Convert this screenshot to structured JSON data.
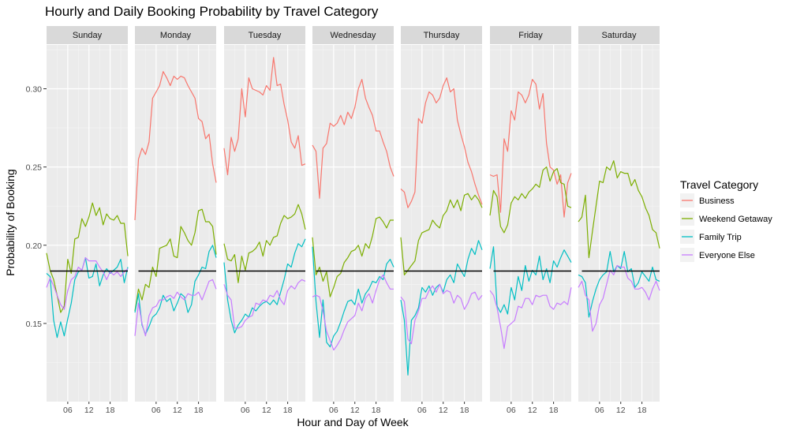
{
  "chart_data": {
    "type": "line",
    "title": "Hourly and Daily Booking Probability by Travel Category",
    "xlabel": "Hour and Day of Week",
    "ylabel": "Probability of Booking",
    "facets": [
      "Sunday",
      "Monday",
      "Tuesday",
      "Wednesday",
      "Thursday",
      "Friday",
      "Saturday"
    ],
    "x_ticks": [
      6,
      12,
      18
    ],
    "x_tick_labels": [
      "06",
      "12",
      "18"
    ],
    "xlim": [
      0,
      23
    ],
    "ylim": [
      0.1,
      0.328
    ],
    "y_ticks": [
      0.15,
      0.2,
      0.25,
      0.3
    ],
    "y_tick_labels": [
      "0.15",
      "0.20",
      "0.25",
      "0.30"
    ],
    "reference_line": 0.1835,
    "grid": true,
    "legend": {
      "title": "Travel Category",
      "placement": "right"
    },
    "series": [
      {
        "name": "Business",
        "color": "#F8766D",
        "values": [
          [],
          [
            0.216,
            0.255,
            0.262,
            0.258,
            0.266,
            0.294,
            0.298,
            0.302,
            0.311,
            0.307,
            0.302,
            0.308,
            0.306,
            0.308,
            0.307,
            0.302,
            0.298,
            0.294,
            0.281,
            0.279,
            0.268,
            0.271,
            0.252,
            0.24
          ],
          [
            0.262,
            0.245,
            0.269,
            0.26,
            0.268,
            0.3,
            0.282,
            0.307,
            0.3,
            0.299,
            0.298,
            0.296,
            0.302,
            0.299,
            0.32,
            0.302,
            0.303,
            0.29,
            0.28,
            0.266,
            0.262,
            0.27,
            0.251,
            0.252
          ],
          [
            0.264,
            0.26,
            0.23,
            0.262,
            0.265,
            0.278,
            0.276,
            0.278,
            0.283,
            0.277,
            0.285,
            0.281,
            0.288,
            0.3,
            0.306,
            0.294,
            0.288,
            0.283,
            0.273,
            0.273,
            0.266,
            0.26,
            0.25,
            0.244
          ],
          [
            0.236,
            0.234,
            0.224,
            0.228,
            0.234,
            0.281,
            0.278,
            0.291,
            0.298,
            0.296,
            0.291,
            0.294,
            0.302,
            0.307,
            0.298,
            0.3,
            0.28,
            0.271,
            0.263,
            0.253,
            0.247,
            0.239,
            0.232,
            0.226
          ],
          [
            0.245,
            0.244,
            0.245,
            0.221,
            0.268,
            0.26,
            0.286,
            0.28,
            0.298,
            0.296,
            0.291,
            0.296,
            0.306,
            0.303,
            0.287,
            0.297,
            0.265,
            0.25,
            0.248,
            0.239,
            0.245,
            0.218,
            0.24,
            0.246
          ],
          []
        ]
      },
      {
        "name": "Weekend Getaway",
        "color": "#7CAE00",
        "values": [
          [
            0.195,
            0.184,
            0.178,
            0.168,
            0.157,
            0.161,
            0.191,
            0.182,
            0.204,
            0.205,
            0.217,
            0.212,
            0.218,
            0.227,
            0.219,
            0.224,
            0.213,
            0.22,
            0.217,
            0.216,
            0.219,
            0.214,
            0.214,
            0.193
          ],
          [
            0.158,
            0.172,
            0.165,
            0.175,
            0.173,
            0.186,
            0.18,
            0.198,
            0.199,
            0.2,
            0.204,
            0.193,
            0.192,
            0.212,
            0.208,
            0.203,
            0.2,
            0.208,
            0.222,
            0.223,
            0.215,
            0.215,
            0.212,
            0.194
          ],
          [
            0.201,
            0.191,
            0.19,
            0.194,
            0.176,
            0.193,
            0.184,
            0.195,
            0.196,
            0.198,
            0.202,
            0.193,
            0.203,
            0.2,
            0.205,
            0.206,
            0.214,
            0.219,
            0.217,
            0.218,
            0.22,
            0.226,
            0.22,
            0.21
          ],
          [
            0.205,
            0.181,
            0.186,
            0.177,
            0.183,
            0.167,
            0.173,
            0.18,
            0.182,
            0.189,
            0.192,
            0.196,
            0.197,
            0.2,
            0.193,
            0.201,
            0.198,
            0.206,
            0.217,
            0.218,
            0.215,
            0.211,
            0.216,
            0.216
          ],
          [
            0.205,
            0.181,
            0.184,
            0.187,
            0.19,
            0.203,
            0.208,
            0.209,
            0.21,
            0.216,
            0.213,
            0.211,
            0.219,
            0.222,
            0.229,
            0.224,
            0.229,
            0.222,
            0.232,
            0.233,
            0.229,
            0.232,
            0.229,
            0.224
          ],
          [
            0.219,
            0.235,
            0.231,
            0.212,
            0.208,
            0.213,
            0.227,
            0.231,
            0.229,
            0.233,
            0.23,
            0.234,
            0.236,
            0.239,
            0.237,
            0.248,
            0.25,
            0.241,
            0.247,
            0.249,
            0.24,
            0.239,
            0.225,
            0.224
          ],
          [
            0.215,
            0.218,
            0.232,
            0.192,
            0.209,
            0.225,
            0.241,
            0.24,
            0.25,
            0.248,
            0.254,
            0.243,
            0.247,
            0.246,
            0.246,
            0.238,
            0.242,
            0.235,
            0.231,
            0.224,
            0.219,
            0.21,
            0.208,
            0.198
          ]
        ]
      },
      {
        "name": "Family Trip",
        "color": "#00BFC4",
        "values": [
          [
            0.182,
            0.18,
            0.152,
            0.141,
            0.151,
            0.142,
            0.153,
            0.163,
            0.178,
            0.183,
            0.184,
            0.192,
            0.179,
            0.18,
            0.188,
            0.174,
            0.181,
            0.185,
            0.182,
            0.184,
            0.186,
            0.191,
            0.176,
            0.186
          ],
          [
            0.157,
            0.169,
            0.149,
            0.143,
            0.148,
            0.154,
            0.156,
            0.16,
            0.168,
            0.164,
            0.166,
            0.158,
            0.163,
            0.169,
            0.167,
            0.157,
            0.162,
            0.177,
            0.181,
            0.186,
            0.185,
            0.196,
            0.2,
            0.192
          ],
          [
            0.189,
            0.165,
            0.152,
            0.144,
            0.149,
            0.152,
            0.156,
            0.154,
            0.16,
            0.158,
            0.161,
            0.163,
            0.164,
            0.162,
            0.165,
            0.162,
            0.17,
            0.178,
            0.188,
            0.186,
            0.195,
            0.201,
            0.199,
            0.204
          ],
          [
            0.199,
            0.164,
            0.141,
            0.165,
            0.138,
            0.135,
            0.142,
            0.145,
            0.151,
            0.158,
            0.164,
            0.165,
            0.162,
            0.172,
            0.163,
            0.169,
            0.172,
            0.177,
            0.176,
            0.18,
            0.178,
            0.188,
            0.191,
            0.186
          ],
          [
            0.165,
            0.152,
            0.117,
            0.152,
            0.155,
            0.16,
            0.173,
            0.17,
            0.174,
            0.168,
            0.173,
            0.175,
            0.17,
            0.178,
            0.181,
            0.176,
            0.188,
            0.184,
            0.18,
            0.191,
            0.198,
            0.194,
            0.203,
            0.197
          ],
          [
            0.185,
            0.199,
            0.161,
            0.157,
            0.162,
            0.156,
            0.173,
            0.165,
            0.18,
            0.171,
            0.187,
            0.177,
            0.184,
            0.181,
            0.193,
            0.178,
            0.185,
            0.176,
            0.19,
            0.186,
            0.192,
            0.197,
            0.193,
            0.189
          ],
          [
            0.181,
            0.18,
            0.176,
            0.154,
            0.164,
            0.172,
            0.178,
            0.181,
            0.183,
            0.196,
            0.183,
            0.187,
            0.185,
            0.196,
            0.183,
            0.185,
            0.173,
            0.176,
            0.183,
            0.18,
            0.177,
            0.186,
            0.178,
            0.177
          ]
        ]
      },
      {
        "name": "Everyone Else",
        "color": "#C77CFF",
        "values": [
          [
            0.173,
            0.179,
            0.174,
            0.168,
            0.162,
            0.159,
            0.171,
            0.178,
            0.18,
            0.186,
            0.184,
            0.192,
            0.19,
            0.19,
            0.19,
            0.186,
            0.183,
            0.178,
            0.183,
            0.181,
            0.183,
            0.18,
            0.183,
            0.185
          ],
          [
            0.142,
            0.163,
            0.15,
            0.142,
            0.155,
            0.16,
            0.161,
            0.165,
            0.165,
            0.167,
            0.168,
            0.166,
            0.17,
            0.167,
            0.165,
            0.169,
            0.168,
            0.168,
            0.17,
            0.165,
            0.171,
            0.177,
            0.178,
            0.172
          ],
          [
            0.175,
            0.168,
            0.165,
            0.147,
            0.147,
            0.148,
            0.152,
            0.154,
            0.155,
            0.163,
            0.162,
            0.165,
            0.164,
            0.168,
            0.167,
            0.171,
            0.165,
            0.162,
            0.171,
            0.174,
            0.172,
            0.176,
            0.178,
            0.177
          ],
          [
            0.167,
            0.168,
            0.167,
            0.158,
            0.145,
            0.139,
            0.133,
            0.136,
            0.14,
            0.146,
            0.151,
            0.153,
            0.155,
            0.163,
            0.158,
            0.166,
            0.169,
            0.163,
            0.171,
            0.178,
            0.181,
            0.176,
            0.172,
            0.172
          ],
          [
            0.167,
            0.164,
            0.14,
            0.137,
            0.152,
            0.158,
            0.166,
            0.166,
            0.171,
            0.174,
            0.17,
            0.175,
            0.169,
            0.171,
            0.17,
            0.163,
            0.168,
            0.166,
            0.159,
            0.163,
            0.169,
            0.17,
            0.165,
            0.168
          ],
          [
            0.171,
            0.168,
            0.16,
            0.148,
            0.134,
            0.148,
            0.15,
            0.152,
            0.161,
            0.16,
            0.166,
            0.166,
            0.162,
            0.168,
            0.167,
            0.168,
            0.168,
            0.161,
            0.159,
            0.163,
            0.162,
            0.164,
            0.162,
            0.173
          ],
          [
            0.173,
            0.177,
            0.168,
            0.165,
            0.145,
            0.15,
            0.162,
            0.166,
            0.175,
            0.184,
            0.181,
            0.187,
            0.186,
            0.186,
            0.179,
            0.177,
            0.172,
            0.172,
            0.173,
            0.17,
            0.165,
            0.172,
            0.177,
            0.171
          ]
        ]
      }
    ]
  }
}
